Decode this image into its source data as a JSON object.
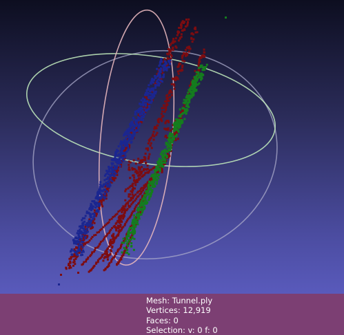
{
  "colors": {
    "bg_top": "#0d0e20",
    "bg_bottom": "#6364cf",
    "panel": "#7c3f73",
    "trackball_x": "#e6b6bd",
    "trackball_y": "#c6f0c0",
    "trackball_z": "#a9a9c9",
    "points_red": "#7d0c10",
    "points_blue": "#1b2690",
    "points_green": "#147c1e"
  },
  "icons": {
    "trackball": "trackball-icon",
    "mesh": "point-cloud-mesh"
  },
  "info": {
    "mesh": "Mesh: Tunnel.ply",
    "vertices": "Vertices: 12,919",
    "faces": "Faces: 0",
    "selection": "Selection: v: 0 f: 0"
  }
}
